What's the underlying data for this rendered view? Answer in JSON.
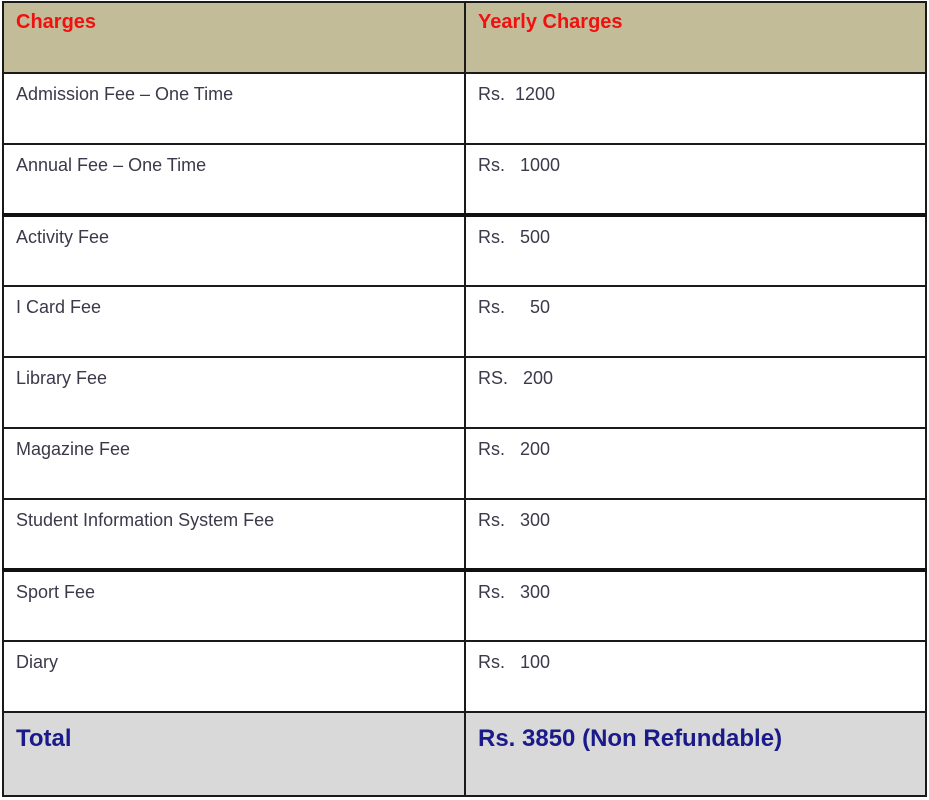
{
  "header": {
    "charges": "Charges",
    "yearly": "Yearly Charges"
  },
  "rows": [
    {
      "name": "Admission Fee – One Time",
      "amount": "Rs.  1200"
    },
    {
      "name": "Annual Fee – One Time",
      "amount": "Rs.   1000"
    },
    {
      "name": "Activity Fee",
      "amount": "Rs.   500"
    },
    {
      "name": "I Card Fee",
      "amount": "Rs.     50"
    },
    {
      "name": "Library Fee",
      "amount": "RS.   200"
    },
    {
      "name": "Magazine Fee",
      "amount": "Rs.   200"
    },
    {
      "name": "Student Information System Fee",
      "amount": "Rs.   300"
    },
    {
      "name": "Sport Fee",
      "amount": "Rs.   300"
    },
    {
      "name": "Diary",
      "amount": "Rs.   100"
    }
  ],
  "total": {
    "label": "Total",
    "amount": "Rs. 3850 (Non Refundable)"
  },
  "colors": {
    "header_bg": "#c3bc98",
    "header_text": "#f01010",
    "total_bg": "#d9d9d9",
    "total_text": "#1a1a8a"
  }
}
